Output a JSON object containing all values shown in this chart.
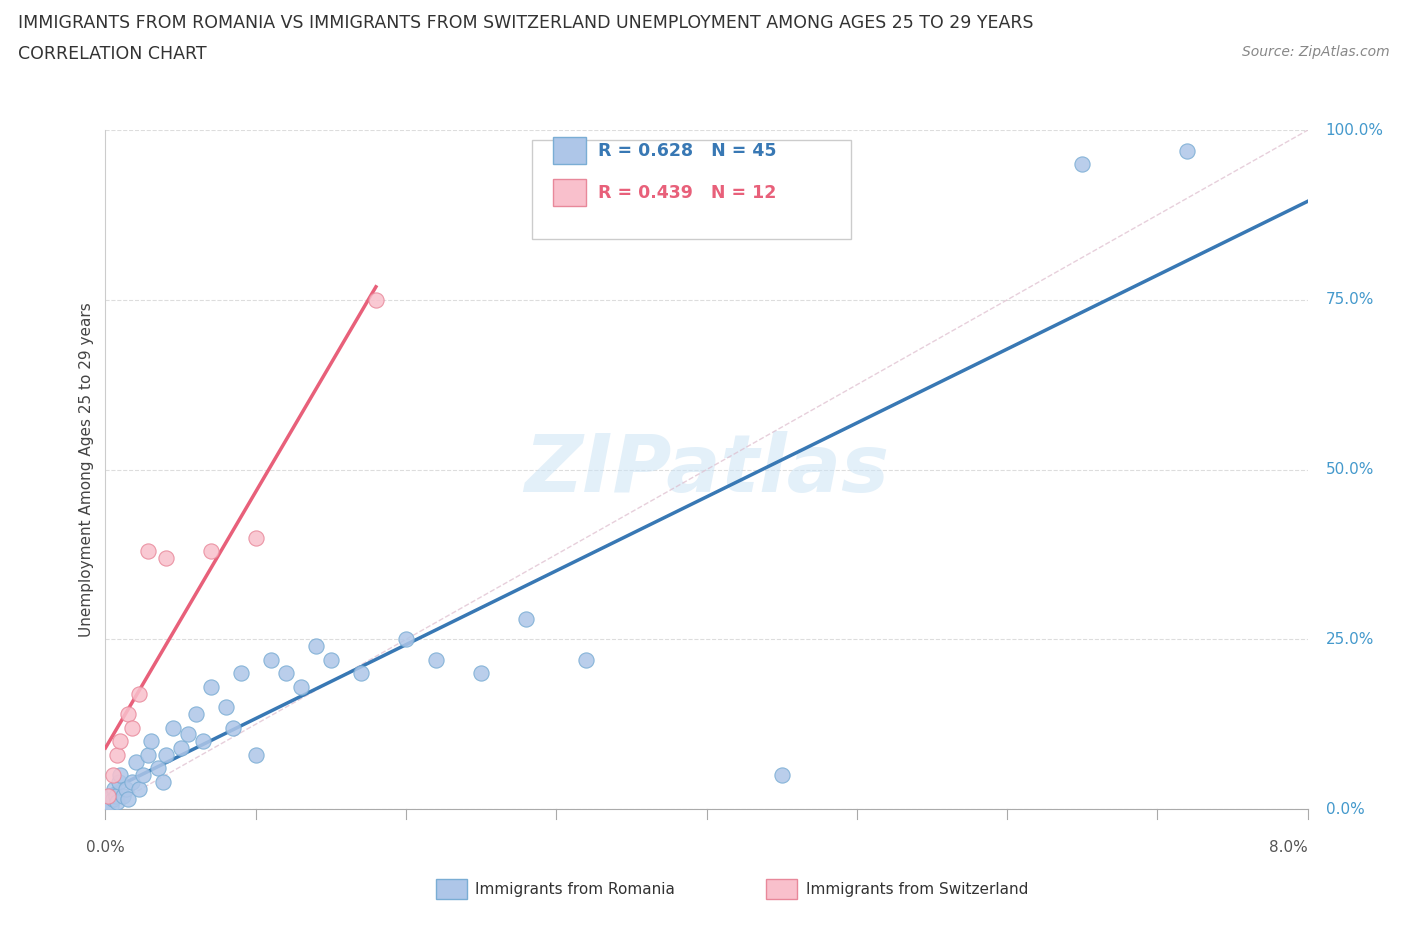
{
  "title_line1": "IMMIGRANTS FROM ROMANIA VS IMMIGRANTS FROM SWITZERLAND UNEMPLOYMENT AMONG AGES 25 TO 29 YEARS",
  "title_line2": "CORRELATION CHART",
  "source": "Source: ZipAtlas.com",
  "ylabel_label": "Unemployment Among Ages 25 to 29 years",
  "xlim": [
    0.0,
    8.0
  ],
  "ylim": [
    0.0,
    100.0
  ],
  "ytick_values": [
    0,
    25,
    50,
    75,
    100
  ],
  "ytick_labels": [
    "0.0%",
    "25.0%",
    "50.0%",
    "75.0%",
    "100.0%"
  ],
  "romania_color_fill": "#aec6e8",
  "romania_color_edge": "#7aadd4",
  "romania_line_color": "#3878b4",
  "switzerland_color_fill": "#f9c0cc",
  "switzerland_color_edge": "#e8889a",
  "switzerland_line_color": "#e8607a",
  "diag_line_color": "#dddddd",
  "grid_color": "#dddddd",
  "watermark_color": "#cce4f5",
  "background_color": "#ffffff",
  "legend_R_romania": "R = 0.628",
  "legend_N_romania": "N = 45",
  "legend_R_switzerland": "R = 0.439",
  "legend_N_switzerland": "N = 12",
  "legend_romania_text_color": "#3878b4",
  "legend_switzerland_text_color": "#e8607a",
  "bottom_legend_romania": "Immigrants from Romania",
  "bottom_legend_switzerland": "Immigrants from Switzerland",
  "title_fontsize": 12.5,
  "source_fontsize": 10,
  "axis_label_fontsize": 11,
  "romania_x": [
    0.02,
    0.03,
    0.04,
    0.05,
    0.06,
    0.07,
    0.08,
    0.09,
    0.1,
    0.12,
    0.14,
    0.15,
    0.18,
    0.2,
    0.22,
    0.25,
    0.28,
    0.3,
    0.35,
    0.38,
    0.4,
    0.45,
    0.5,
    0.55,
    0.6,
    0.65,
    0.7,
    0.8,
    0.85,
    0.9,
    1.0,
    1.1,
    1.2,
    1.3,
    1.4,
    1.5,
    1.7,
    2.0,
    2.2,
    2.5,
    2.8,
    3.2,
    4.5,
    6.5,
    7.2
  ],
  "romania_y": [
    1.0,
    2.0,
    0.5,
    1.5,
    3.0,
    2.0,
    1.0,
    4.0,
    5.0,
    2.0,
    3.0,
    1.5,
    4.0,
    7.0,
    3.0,
    5.0,
    8.0,
    10.0,
    6.0,
    4.0,
    8.0,
    12.0,
    9.0,
    11.0,
    14.0,
    10.0,
    18.0,
    15.0,
    12.0,
    20.0,
    8.0,
    22.0,
    20.0,
    18.0,
    24.0,
    22.0,
    20.0,
    25.0,
    22.0,
    20.0,
    28.0,
    22.0,
    5.0,
    95.0,
    97.0
  ],
  "switzerland_x": [
    0.02,
    0.05,
    0.08,
    0.1,
    0.15,
    0.18,
    0.22,
    0.28,
    0.4,
    0.7,
    1.0,
    1.8
  ],
  "switzerland_y": [
    2.0,
    5.0,
    8.0,
    10.0,
    14.0,
    12.0,
    17.0,
    38.0,
    37.0,
    38.0,
    40.0,
    75.0
  ]
}
